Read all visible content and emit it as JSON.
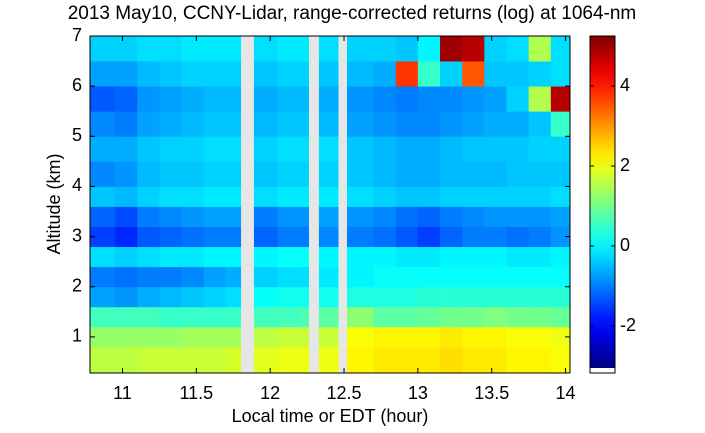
{
  "chart_data": {
    "type": "heatmap",
    "title": "2013 May10, CCNY-Lidar, range-corrected returns (log) at 1064-nm",
    "xlabel": "Local time or EDT (hour)",
    "ylabel": "Altitude (km)",
    "colormap": "jet",
    "x_edges": [
      10.78,
      10.95,
      11.1,
      11.25,
      11.4,
      11.55,
      11.7,
      11.8,
      11.89,
      12.05,
      12.2,
      12.26,
      12.33,
      12.46,
      12.52,
      12.7,
      12.85,
      13.0,
      13.15,
      13.3,
      13.45,
      13.6,
      13.75,
      13.9,
      14.03
    ],
    "y_edges": [
      0.28,
      0.8,
      1.2,
      1.6,
      2.0,
      2.4,
      2.8,
      3.2,
      3.6,
      4.0,
      4.5,
      5.0,
      5.5,
      6.0,
      6.5,
      7.0
    ],
    "values": [
      [
        1.6,
        1.6,
        1.7,
        1.7,
        1.7,
        1.7,
        1.8,
        null,
        1.9,
        2.0,
        2.0,
        null,
        2.0,
        null,
        2.2,
        2.3,
        2.3,
        2.3,
        2.4,
        2.3,
        2.3,
        2.2,
        2.2,
        2.1
      ],
      [
        1.3,
        1.3,
        1.3,
        1.3,
        1.4,
        1.4,
        1.4,
        null,
        1.6,
        1.7,
        1.7,
        null,
        1.7,
        null,
        2.1,
        2.2,
        2.2,
        2.2,
        2.3,
        2.2,
        2.2,
        2.1,
        2.1,
        2.0
      ],
      [
        0.6,
        0.6,
        0.6,
        0.5,
        0.5,
        0.5,
        0.5,
        null,
        0.6,
        0.6,
        0.7,
        null,
        0.8,
        null,
        1.2,
        0.8,
        0.8,
        0.9,
        1.0,
        1.0,
        1.1,
        1.0,
        1.0,
        0.9
      ],
      [
        -0.7,
        -0.8,
        -0.6,
        -0.5,
        -0.4,
        -0.3,
        -0.2,
        null,
        0.1,
        0.2,
        0.2,
        null,
        0.2,
        null,
        0.3,
        0.3,
        0.3,
        0.4,
        0.4,
        0.4,
        0.4,
        0.4,
        0.4,
        0.4
      ],
      [
        -1.0,
        -1.1,
        -1.0,
        -1.0,
        -0.9,
        -0.7,
        -0.6,
        null,
        -0.3,
        -0.2,
        -0.2,
        null,
        -0.1,
        null,
        0.0,
        0.1,
        0.1,
        0.1,
        0.1,
        0.1,
        0.1,
        0.1,
        0.1,
        0.1
      ],
      [
        -0.2,
        -0.3,
        -0.2,
        -0.1,
        -0.1,
        0.0,
        0.0,
        null,
        0.0,
        0.1,
        0.1,
        null,
        0.0,
        null,
        0.0,
        0.0,
        -0.1,
        -0.1,
        0.0,
        0.0,
        0.0,
        -0.1,
        -0.1,
        0.0
      ],
      [
        -1.5,
        -1.7,
        -1.3,
        -1.2,
        -1.1,
        -1.0,
        -1.0,
        null,
        -1.2,
        -1.0,
        -1.0,
        null,
        -0.9,
        null,
        -1.0,
        -1.1,
        -1.3,
        -1.5,
        -1.2,
        -1.0,
        -1.0,
        -1.1,
        -1.0,
        -0.8
      ],
      [
        -1.2,
        -1.4,
        -1.0,
        -0.9,
        -0.8,
        -0.7,
        -0.7,
        null,
        -1.0,
        -0.8,
        -0.8,
        null,
        -0.7,
        null,
        -0.8,
        -0.9,
        -1.1,
        -1.2,
        -1.0,
        -0.9,
        -0.8,
        -0.8,
        -0.8,
        -0.7
      ],
      [
        -0.4,
        -0.5,
        -0.3,
        -0.2,
        -0.2,
        -0.1,
        -0.1,
        null,
        -0.2,
        -0.1,
        -0.1,
        null,
        -0.1,
        null,
        -0.2,
        -0.3,
        -0.4,
        -0.4,
        -0.3,
        -0.3,
        -0.3,
        -0.3,
        -0.3,
        -0.2
      ],
      [
        -0.9,
        -0.8,
        -0.5,
        -0.4,
        -0.4,
        -0.3,
        -0.3,
        null,
        -0.4,
        -0.3,
        -0.3,
        null,
        -0.3,
        null,
        -0.4,
        -0.5,
        -0.6,
        -0.6,
        -0.5,
        -0.5,
        -0.5,
        -0.4,
        -0.4,
        -0.4
      ],
      [
        -0.6,
        -0.6,
        -0.4,
        -0.3,
        -0.3,
        -0.2,
        -0.2,
        null,
        -0.3,
        -0.2,
        -0.2,
        null,
        -0.2,
        null,
        -0.4,
        -0.5,
        -0.6,
        -0.6,
        -0.5,
        -0.4,
        -0.4,
        -0.4,
        -0.3,
        -0.3
      ],
      [
        -0.9,
        -1.0,
        -0.7,
        -0.6,
        -0.5,
        -0.4,
        -0.4,
        null,
        -0.5,
        -0.4,
        -0.4,
        null,
        -0.5,
        null,
        -0.7,
        -0.8,
        -0.9,
        -0.9,
        -0.8,
        -0.7,
        -0.6,
        -0.6,
        -0.4,
        0.5
      ],
      [
        -1.3,
        -1.2,
        -0.8,
        -0.7,
        -0.6,
        -0.5,
        -0.5,
        null,
        -0.6,
        -0.5,
        -0.5,
        null,
        -0.6,
        null,
        -0.8,
        -0.9,
        -1.0,
        -0.9,
        -0.9,
        -0.8,
        -0.7,
        -0.3,
        1.5,
        4.8
      ],
      [
        -0.7,
        -0.7,
        -0.5,
        -0.4,
        -0.3,
        -0.3,
        -0.3,
        null,
        -0.4,
        -0.3,
        -0.3,
        null,
        -0.4,
        null,
        -0.5,
        -0.6,
        3.8,
        0.5,
        -0.3,
        3.5,
        -0.4,
        -0.4,
        -0.3,
        -0.2
      ],
      [
        -0.3,
        -0.3,
        -0.2,
        -0.2,
        -0.1,
        -0.1,
        -0.1,
        null,
        -0.2,
        -0.1,
        -0.1,
        null,
        -0.2,
        null,
        -0.3,
        -0.3,
        -0.4,
        0.0,
        5.0,
        4.8,
        -0.3,
        -0.2,
        1.5,
        -0.2
      ]
    ],
    "xlim": [
      10.78,
      14.03
    ],
    "ylim": [
      0.28,
      7
    ],
    "xticks": [
      11,
      11.5,
      12,
      12.5,
      13,
      13.5,
      14
    ],
    "yticks": [
      1,
      2,
      3,
      4,
      5,
      6,
      7
    ],
    "clim": [
      -3.05,
      5.25
    ],
    "cticks": [
      -2,
      0,
      2,
      4
    ]
  }
}
